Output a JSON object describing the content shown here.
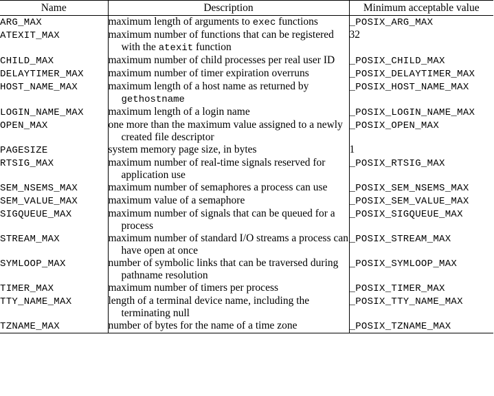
{
  "headers": {
    "name": "Name",
    "description": "Description",
    "min_value": "Minimum acceptable value"
  },
  "rows": [
    {
      "name": "ARG_MAX",
      "desc": [
        {
          "t": "maximum length of arguments to "
        },
        {
          "t": "exec",
          "m": true
        },
        {
          "t": " functions"
        }
      ],
      "value": "_POSIX_ARG_MAX",
      "value_mono": true,
      "lines": 2
    },
    {
      "name": "ATEXIT_MAX",
      "desc": [
        {
          "t": "maximum number of functions that can be registered with the "
        },
        {
          "t": "atexit",
          "m": true
        },
        {
          "t": " function"
        }
      ],
      "value": "32",
      "value_mono": false,
      "lines": 2
    },
    {
      "name": "CHILD_MAX",
      "desc": [
        {
          "t": "maximum number of child processes per real user ID"
        }
      ],
      "value": "_POSIX_CHILD_MAX",
      "value_mono": true,
      "lines": 2
    },
    {
      "name": "DELAYTIMER_MAX",
      "desc": [
        {
          "t": "maximum number of timer expiration overruns"
        }
      ],
      "value": "_POSIX_DELAYTIMER_MAX",
      "value_mono": true,
      "lines": 1
    },
    {
      "name": "HOST_NAME_MAX",
      "desc": [
        {
          "t": "maximum length of a host name as returned by "
        },
        {
          "t": "gethostname",
          "m": true
        }
      ],
      "value": "_POSIX_HOST_NAME_MAX",
      "value_mono": true,
      "lines": 2
    },
    {
      "name": "LOGIN_NAME_MAX",
      "desc": [
        {
          "t": "maximum length of a login name"
        }
      ],
      "value": "_POSIX_LOGIN_NAME_MAX",
      "value_mono": true,
      "lines": 1
    },
    {
      "name": "OPEN_MAX",
      "desc": [
        {
          "t": "one more than the maximum value assigned to a newly created file descriptor"
        }
      ],
      "value": "_POSIX_OPEN_MAX",
      "value_mono": true,
      "lines": 2
    },
    {
      "name": "PAGESIZE",
      "desc": [
        {
          "t": "system memory page size, in bytes"
        }
      ],
      "value": "1",
      "value_mono": false,
      "lines": 1
    },
    {
      "name": "RTSIG_MAX",
      "desc": [
        {
          "t": "maximum number of real-time signals reserved for application use"
        }
      ],
      "value": "_POSIX_RTSIG_MAX",
      "value_mono": true,
      "lines": 2
    },
    {
      "name": "SEM_NSEMS_MAX",
      "desc": [
        {
          "t": "maximum number of semaphores a process can use"
        }
      ],
      "value": "_POSIX_SEM_NSEMS_MAX",
      "value_mono": true,
      "lines": 2
    },
    {
      "name": "SEM_VALUE_MAX",
      "desc": [
        {
          "t": "maximum value of a semaphore"
        }
      ],
      "value": "_POSIX_SEM_VALUE_MAX",
      "value_mono": true,
      "lines": 1
    },
    {
      "name": "SIGQUEUE_MAX",
      "desc": [
        {
          "t": "maximum number of signals that can be queued for a process"
        }
      ],
      "value": "_POSIX_SIGQUEUE_MAX",
      "value_mono": true,
      "lines": 2
    },
    {
      "name": "STREAM_MAX",
      "desc": [
        {
          "t": "maximum number of standard I/O streams a process can have open at once"
        }
      ],
      "value": "_POSIX_STREAM_MAX",
      "value_mono": true,
      "lines": 2
    },
    {
      "name": "SYMLOOP_MAX",
      "desc": [
        {
          "t": "number of symbolic links that can be traversed during pathname resolution"
        }
      ],
      "value": "_POSIX_SYMLOOP_MAX",
      "value_mono": true,
      "lines": 2
    },
    {
      "name": "TIMER_MAX",
      "desc": [
        {
          "t": "maximum number of timers per process"
        }
      ],
      "value": "_POSIX_TIMER_MAX",
      "value_mono": true,
      "lines": 1
    },
    {
      "name": "TTY_NAME_MAX",
      "desc": [
        {
          "t": "length of a terminal device name, including the terminating null"
        }
      ],
      "value": "_POSIX_TTY_NAME_MAX",
      "value_mono": true,
      "lines": 2
    },
    {
      "name": "TZNAME_MAX",
      "desc": [
        {
          "t": "number of bytes for the name of a time zone"
        }
      ],
      "value": "_POSIX_TZNAME_MAX",
      "value_mono": true,
      "lines": 1
    }
  ]
}
